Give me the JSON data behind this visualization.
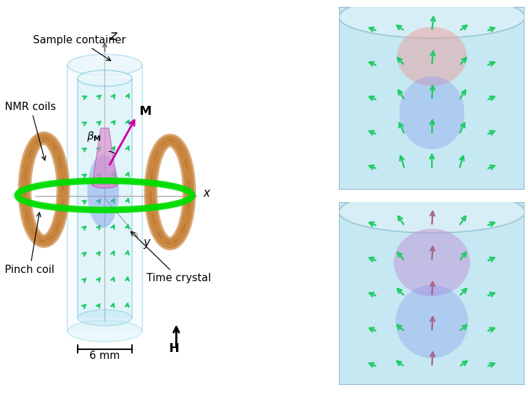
{
  "bg_color": "#ffffff",
  "labels": {
    "sample_container": "Sample container",
    "nmr_coils": "NMR coils",
    "pinch_coil": "Pinch coil",
    "time_crystal": "Time crystal",
    "z_axis": "z",
    "x_axis": "x",
    "y_axis": "y",
    "M_label": "M",
    "scale_label": "6 mm",
    "H_label": "H"
  },
  "colors": {
    "cylinder_face": "#c8eef5",
    "cylinder_edge": "#a0d8e8",
    "outer_cylinder_edge": "#b8dce8",
    "green_arrow": "#22cc66",
    "green_ring": "#00dd00",
    "nmr_coil_color": "#c8843c",
    "pink_cone": "#dd88cc",
    "blue_blob": "#7090e8",
    "magenta_arrow": "#cc00aa",
    "text_color": "#000000",
    "panel_bg": "#c5e8f2",
    "panel_cap": "#d8eef6",
    "panel_cap_edge": "#a0ccd8",
    "pink_blob": "#e8a0a0",
    "purple_blob": "#c090d8",
    "dark_arrow": "#aa6688"
  }
}
